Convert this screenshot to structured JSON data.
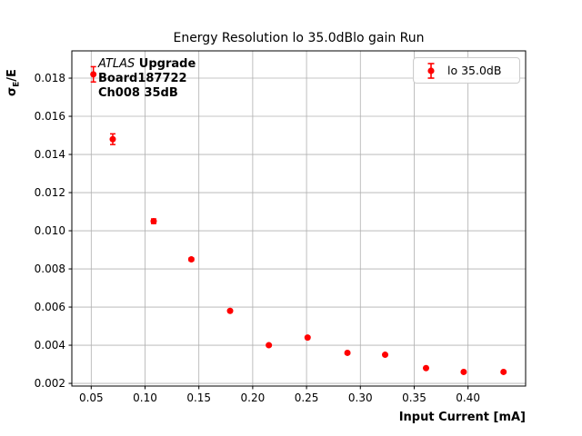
{
  "figure": {
    "title": "Energy Resolution lo 35.0dBlo gain Run",
    "xlabel": "Input Current [mA]",
    "ylabel": {
      "sigma": "σ",
      "sub": "E",
      "rest": "/E"
    },
    "annotation": {
      "experiment": "ATLAS",
      "experiment_suffix": " Upgrade",
      "line2": "Board187722",
      "line3": "Ch008 35dB"
    },
    "legend": {
      "label": "lo 35.0dB"
    }
  },
  "colors": {
    "marker": "#ff0000",
    "grid": "#b0b0b0",
    "spine": "#000000",
    "legend_border": "#cccccc",
    "background": "#ffffff"
  },
  "chart_data": {
    "type": "scatter",
    "title": "Energy Resolution lo 35.0dBlo gain Run",
    "xlabel": "Input Current [mA]",
    "ylabel": "sigma_E/E",
    "grid": true,
    "legend_position": "upper right",
    "annotation_lines": [
      "ATLAS Upgrade",
      "Board187722",
      "Ch008 35dB"
    ],
    "xlim": [
      0.032,
      0.4535
    ],
    "ylim": [
      0.00186,
      0.01943
    ],
    "xticks": {
      "values": [
        0.05,
        0.1,
        0.15,
        0.2,
        0.25,
        0.3,
        0.35,
        0.4
      ],
      "labels": [
        "0.05",
        "0.10",
        "0.15",
        "0.20",
        "0.25",
        "0.30",
        "0.35",
        "0.40"
      ]
    },
    "yticks": {
      "values": [
        0.002,
        0.004,
        0.006,
        0.008,
        0.01,
        0.012,
        0.014,
        0.016,
        0.018
      ],
      "labels": [
        "0.002",
        "0.004",
        "0.006",
        "0.008",
        "0.010",
        "0.012",
        "0.014",
        "0.016",
        "0.018"
      ]
    },
    "series": [
      {
        "name": "lo 35.0dB",
        "color": "#ff0000",
        "marker": "o",
        "x": [
          0.052,
          0.07,
          0.108,
          0.143,
          0.179,
          0.215,
          0.251,
          0.288,
          0.323,
          0.361,
          0.396,
          0.433
        ],
        "y": [
          0.0182,
          0.0148,
          0.0105,
          0.0085,
          0.0058,
          0.004,
          0.0044,
          0.0036,
          0.0035,
          0.0028,
          0.0026,
          0.0026
        ],
        "yerr": [
          0.0004,
          0.00028,
          0.00012,
          8e-05,
          6e-05,
          5e-05,
          5e-05,
          5e-05,
          5e-05,
          4e-05,
          4e-05,
          4e-05
        ]
      }
    ]
  }
}
